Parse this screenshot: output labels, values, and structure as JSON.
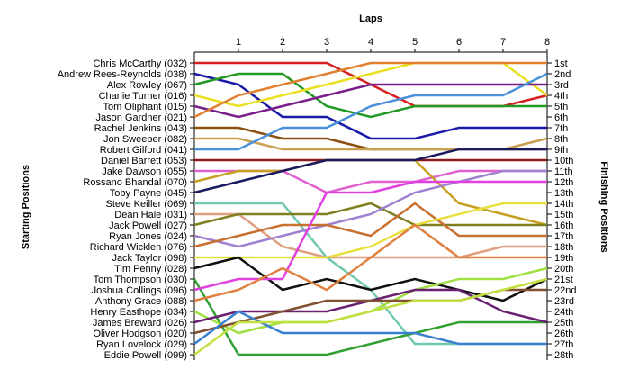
{
  "chart_data": {
    "type": "line",
    "title": "Laps",
    "ylabel_left": "Starting Positions",
    "ylabel_right": "Finishing Positions",
    "x": [
      0,
      1,
      2,
      3,
      4,
      5,
      6,
      7,
      8
    ],
    "x_tick_labels": [
      "1",
      "2",
      "3",
      "4",
      "5",
      "6",
      "7",
      "8"
    ],
    "position_labels": [
      "1st",
      "2nd",
      "3rd",
      "4th",
      "5th",
      "6th",
      "7th",
      "8th",
      "9th",
      "10th",
      "11th",
      "12th",
      "13th",
      "14th",
      "15th",
      "16th",
      "17th",
      "18th",
      "19th",
      "20th",
      "21st",
      "22nd",
      "23rd",
      "24th",
      "25th",
      "26th",
      "27th",
      "28th"
    ],
    "ylim": [
      1,
      28
    ],
    "grid": false,
    "series": [
      {
        "name": "Chris McCarthy (032)",
        "color": "#d62020",
        "values": [
          1,
          1,
          1,
          1,
          3,
          5,
          5,
          5,
          4
        ]
      },
      {
        "name": "Andrew Rees-Reynolds (038)",
        "color": "#1a1aa8",
        "values": [
          2,
          3,
          6,
          6,
          8,
          8,
          7,
          7,
          7
        ]
      },
      {
        "name": "Alex Rowley (067)",
        "color": "#229922",
        "values": [
          3,
          2,
          2,
          5,
          6,
          5,
          5,
          5,
          5
        ]
      },
      {
        "name": "Charlie Turner (016)",
        "color": "#e8e020",
        "values": [
          4,
          5,
          4,
          3,
          2,
          1,
          1,
          1,
          4
        ]
      },
      {
        "name": "Tom Oliphant (015)",
        "color": "#7a1f8a",
        "values": [
          5,
          6,
          5,
          4,
          3,
          3,
          3,
          3,
          3
        ]
      },
      {
        "name": "Jason Gardner (021)",
        "color": "#e08030",
        "values": [
          6,
          4,
          3,
          2,
          1,
          1,
          1,
          1,
          1
        ]
      },
      {
        "name": "Rachel Jenkins (043)",
        "color": "#8a5010",
        "values": [
          7,
          7,
          8,
          8,
          9,
          9,
          9,
          9,
          9
        ]
      },
      {
        "name": "Jon Sweeper (082)",
        "color": "#c8a050",
        "values": [
          8,
          8,
          9,
          9,
          9,
          9,
          9,
          9,
          8
        ]
      },
      {
        "name": "Robert Gilford (041)",
        "color": "#4a90d8",
        "values": [
          9,
          9,
          7,
          7,
          5,
          4,
          4,
          4,
          2
        ]
      },
      {
        "name": "Daniel Barrett (053)",
        "color": "#8b1a1a",
        "values": [
          10,
          10,
          10,
          10,
          10,
          10,
          10,
          10,
          10
        ]
      },
      {
        "name": "Jake Dawson (055)",
        "color": "#e060d0",
        "values": [
          11,
          11,
          11,
          13,
          12,
          12,
          11,
          11,
          11
        ]
      },
      {
        "name": "Rossano Bhandal (070)",
        "color": "#c8a020",
        "values": [
          12,
          11,
          11,
          10,
          10,
          10,
          14,
          15,
          16
        ]
      },
      {
        "name": "Toby Payne (045)",
        "color": "#1a1a60",
        "values": [
          13,
          12,
          11,
          10,
          10,
          10,
          9,
          9,
          9
        ]
      },
      {
        "name": "Steve Keiller (069)",
        "color": "#70c8b0",
        "values": [
          14,
          14,
          14,
          19,
          22,
          27,
          27,
          27,
          27
        ]
      },
      {
        "name": "Dean Hale (031)",
        "color": "#e0a080",
        "values": [
          15,
          15,
          18,
          19,
          19,
          19,
          19,
          18,
          18
        ]
      },
      {
        "name": "Jack Powell (027)",
        "color": "#808020",
        "values": [
          16,
          15,
          15,
          15,
          14,
          16,
          16,
          16,
          16
        ]
      },
      {
        "name": "Ryan Jones (024)",
        "color": "#a080d0",
        "values": [
          17,
          18,
          17,
          16,
          15,
          13,
          12,
          11,
          11
        ]
      },
      {
        "name": "Richard Wicklen (076)",
        "color": "#c87030",
        "values": [
          18,
          17,
          16,
          16,
          17,
          14,
          17,
          17,
          17
        ]
      },
      {
        "name": "Jack Taylor (098)",
        "color": "#e8e040",
        "values": [
          19,
          19,
          19,
          19,
          18,
          16,
          15,
          14,
          14
        ]
      },
      {
        "name": "Tim Penny (028)",
        "color": "#101010",
        "values": [
          20,
          19,
          22,
          21,
          22,
          21,
          22,
          23,
          21
        ]
      },
      {
        "name": "Tom Thompson (030)",
        "color": "#30a030",
        "values": [
          21,
          28,
          28,
          28,
          27,
          26,
          25,
          25,
          25
        ]
      },
      {
        "name": "Joshua Collings (096)",
        "color": "#e040e0",
        "values": [
          22,
          21,
          21,
          13,
          13,
          12,
          12,
          12,
          12
        ]
      },
      {
        "name": "Anthony Grace (088)",
        "color": "#e08040",
        "values": [
          23,
          22,
          20,
          22,
          19,
          16,
          19,
          19,
          19
        ]
      },
      {
        "name": "Henry Easthope (034)",
        "color": "#a0e040",
        "values": [
          24,
          26,
          25,
          25,
          24,
          22,
          21,
          21,
          20
        ]
      },
      {
        "name": "James Breward (026)",
        "color": "#6a2070",
        "values": [
          25,
          24,
          24,
          24,
          23,
          22,
          22,
          24,
          25
        ]
      },
      {
        "name": "Oliver Hodgson (020)",
        "color": "#805030",
        "values": [
          26,
          25,
          24,
          23,
          23,
          23,
          23,
          22,
          22
        ]
      },
      {
        "name": "Ryan Lovelock (029)",
        "color": "#3a80d0",
        "values": [
          27,
          24,
          26,
          26,
          26,
          26,
          27,
          27,
          27
        ]
      },
      {
        "name": "Eddie Powell (099)",
        "color": "#c0e040",
        "values": [
          28,
          25,
          25,
          25,
          24,
          23,
          23,
          22,
          21
        ]
      }
    ]
  }
}
